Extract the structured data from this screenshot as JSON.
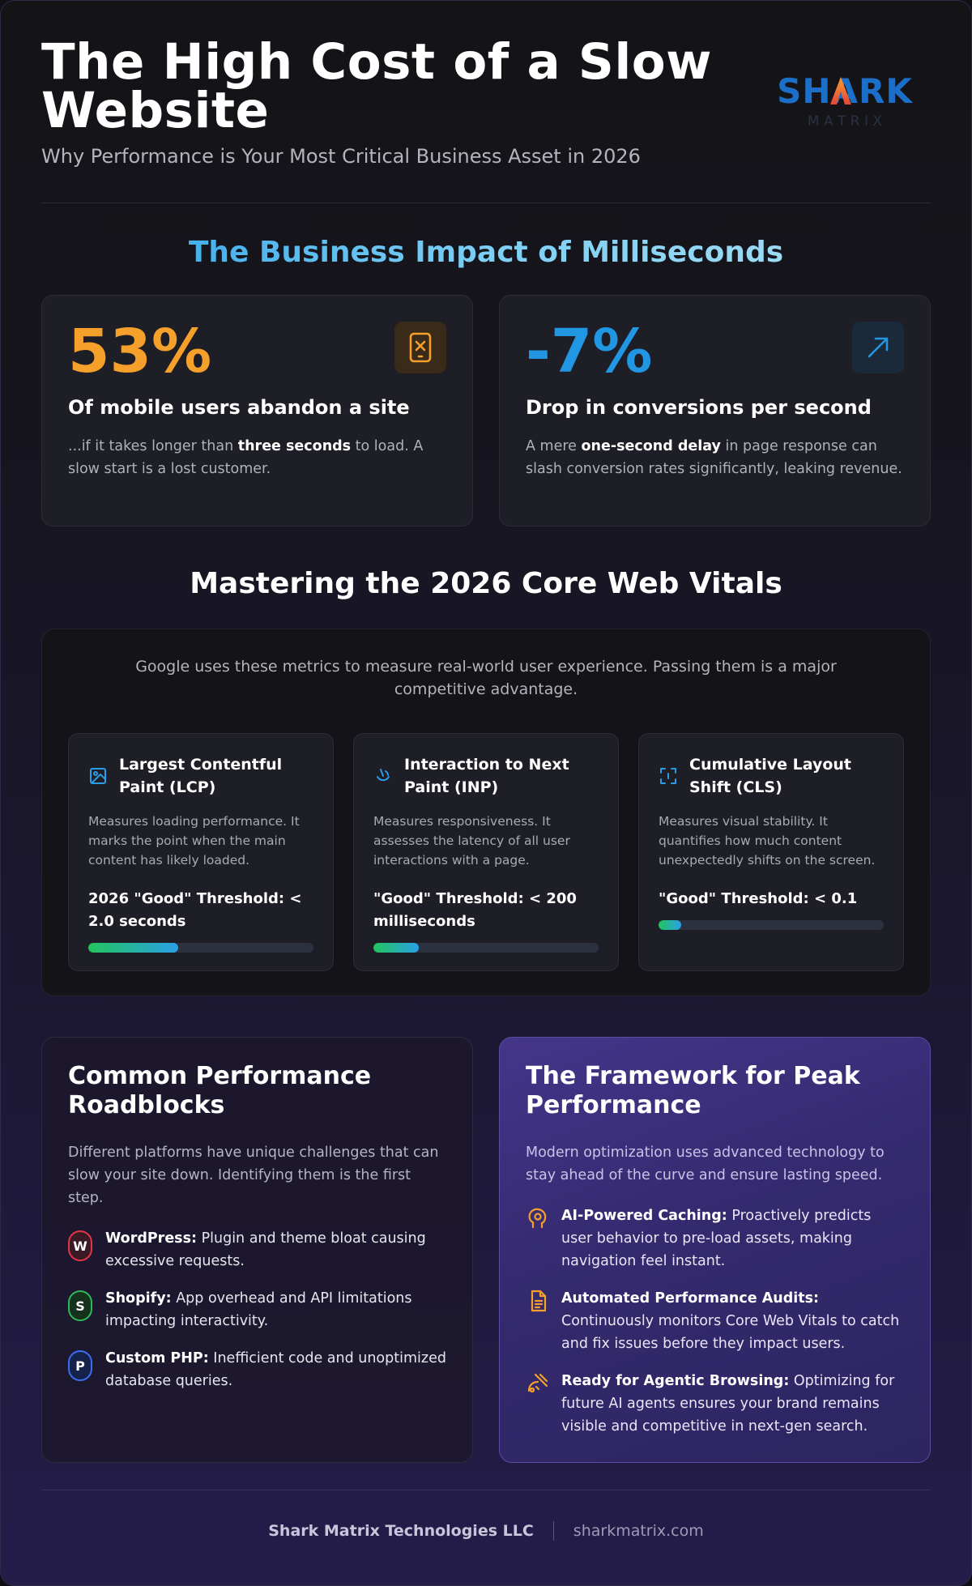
{
  "header": {
    "title": "The High Cost of a Slow Website",
    "subtitle": "Why Performance is Your Most Critical Business Asset in 2026",
    "logo": {
      "word": "SHARK",
      "sub": "M A T R I X"
    }
  },
  "impact": {
    "title": "The Business Impact of Milliseconds",
    "cards": [
      {
        "value": "53%",
        "heading": "Of mobile users abandon a site",
        "body_pre": "...if it takes longer than ",
        "body_bold": "three seconds",
        "body_post": " to load. A slow start is a lost customer.",
        "icon": "phone-x-icon",
        "color": "#f5a02a"
      },
      {
        "value": "-7%",
        "heading": "Drop in conversions per second",
        "body_pre": "A mere ",
        "body_bold": "one-second delay",
        "body_post": " in page response can slash conversion rates significantly, leaking revenue.",
        "icon": "arrow-up-right-icon",
        "color": "#2196e3"
      }
    ]
  },
  "vitals": {
    "title": "Mastering the 2026 Core Web Vitals",
    "intro": "Google uses these metrics to measure real-world user experience. Passing them is a major competitive advantage.",
    "cards": [
      {
        "name": "Largest Contentful Paint (LCP)",
        "desc": "Measures loading performance. It marks the point when the main content has likely loaded.",
        "threshold": "2026 \"Good\" Threshold: < 2.0 seconds",
        "fill": 0.4,
        "icon": "image-icon"
      },
      {
        "name": "Interaction to Next Paint (INP)",
        "desc": "Measures responsiveness. It assesses the latency of all user interactions with a page.",
        "threshold": "\"Good\" Threshold: < 200 milliseconds",
        "fill": 0.2,
        "icon": "pointer-icon"
      },
      {
        "name": "Cumulative Layout Shift (CLS)",
        "desc": "Measures visual stability. It quantifies how much content unexpectedly shifts on the screen.",
        "threshold": "\"Good\" Threshold: < 0.1",
        "fill": 0.1,
        "icon": "frame-icon"
      }
    ]
  },
  "roadblocks": {
    "title": "Common Performance Roadblocks",
    "intro": "Different platforms have unique challenges that can slow your site down. Identifying them is the first step.",
    "items": [
      {
        "badge": "W",
        "label": "WordPress:",
        "text": " Plugin and theme bloat causing excessive requests."
      },
      {
        "badge": "S",
        "label": "Shopify:",
        "text": " App overhead and API limitations impacting interactivity."
      },
      {
        "badge": "P",
        "label": "Custom PHP:",
        "text": " Inefficient code and unoptimized database queries."
      }
    ]
  },
  "framework": {
    "title": "The Framework for Peak Performance",
    "intro": "Modern optimization uses advanced technology to stay ahead of the curve and ensure lasting speed.",
    "items": [
      {
        "label": "AI-Powered Caching:",
        "text": " Proactively predicts user behavior to pre-load assets, making navigation feel instant.",
        "icon": "brain-icon"
      },
      {
        "label": "Automated Performance Audits:",
        "text": " Continuously monitors Core Web Vitals to catch and fix issues before they impact users.",
        "icon": "document-icon"
      },
      {
        "label": "Ready for Agentic Browsing:",
        "text": " Optimizing for future AI agents ensures your brand remains visible and competitive in next-gen search.",
        "icon": "robot-icon"
      }
    ]
  },
  "footer": {
    "company": "Shark Matrix Technologies LLC",
    "site": "sharkmatrix.com"
  },
  "colors": {
    "accent_orange": "#f5a02a",
    "accent_blue": "#2196e3",
    "logo_blue": "#1c6fc9",
    "logo_fin": "#e5443a"
  }
}
